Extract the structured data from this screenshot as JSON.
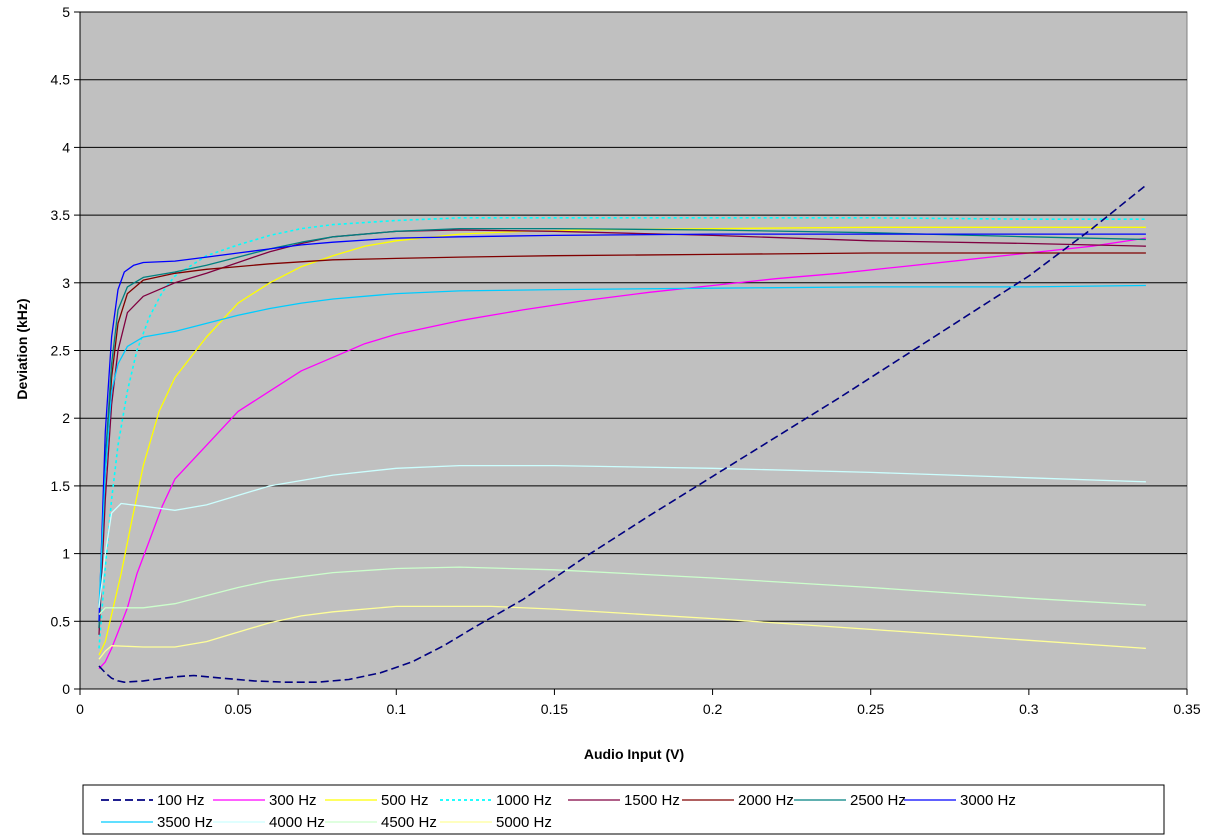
{
  "chart_data": {
    "type": "line",
    "title": "",
    "xlabel": "Audio Input (V)",
    "ylabel": "Deviation (kHz)",
    "xlim": [
      0,
      0.35
    ],
    "ylim": [
      0,
      5
    ],
    "x_ticks": [
      "0",
      "0.05",
      "0.1",
      "0.15",
      "0.2",
      "0.25",
      "0.3",
      "0.35"
    ],
    "y_ticks": [
      "0",
      "0.5",
      "1",
      "1.5",
      "2",
      "2.5",
      "3",
      "3.5",
      "4",
      "4.5",
      "5"
    ],
    "grid": "horizontal",
    "plot_background": "#c0c0c0",
    "legend_position": "bottom",
    "series": [
      {
        "name": "100 Hz",
        "color": "#000080",
        "dash": "dashed",
        "points": [
          [
            0.006,
            0.17
          ],
          [
            0.008,
            0.12
          ],
          [
            0.01,
            0.08
          ],
          [
            0.012,
            0.06
          ],
          [
            0.014,
            0.05
          ],
          [
            0.02,
            0.06
          ],
          [
            0.03,
            0.09
          ],
          [
            0.036,
            0.1
          ],
          [
            0.045,
            0.08
          ],
          [
            0.055,
            0.06
          ],
          [
            0.065,
            0.05
          ],
          [
            0.075,
            0.05
          ],
          [
            0.085,
            0.07
          ],
          [
            0.095,
            0.12
          ],
          [
            0.105,
            0.2
          ],
          [
            0.115,
            0.32
          ],
          [
            0.125,
            0.46
          ],
          [
            0.14,
            0.66
          ],
          [
            0.16,
            0.98
          ],
          [
            0.18,
            1.28
          ],
          [
            0.2,
            1.57
          ],
          [
            0.22,
            1.86
          ],
          [
            0.24,
            2.15
          ],
          [
            0.26,
            2.45
          ],
          [
            0.28,
            2.75
          ],
          [
            0.3,
            3.05
          ],
          [
            0.32,
            3.4
          ],
          [
            0.337,
            3.72
          ]
        ]
      },
      {
        "name": "300 Hz",
        "color": "#ff00ff",
        "dash": "solid",
        "points": [
          [
            0.006,
            0.15
          ],
          [
            0.008,
            0.2
          ],
          [
            0.01,
            0.3
          ],
          [
            0.012,
            0.42
          ],
          [
            0.015,
            0.6
          ],
          [
            0.018,
            0.85
          ],
          [
            0.022,
            1.1
          ],
          [
            0.026,
            1.35
          ],
          [
            0.03,
            1.55
          ],
          [
            0.04,
            1.8
          ],
          [
            0.05,
            2.05
          ],
          [
            0.06,
            2.2
          ],
          [
            0.07,
            2.35
          ],
          [
            0.08,
            2.45
          ],
          [
            0.09,
            2.55
          ],
          [
            0.1,
            2.62
          ],
          [
            0.12,
            2.72
          ],
          [
            0.14,
            2.8
          ],
          [
            0.16,
            2.87
          ],
          [
            0.18,
            2.93
          ],
          [
            0.2,
            2.98
          ],
          [
            0.22,
            3.03
          ],
          [
            0.24,
            3.07
          ],
          [
            0.26,
            3.12
          ],
          [
            0.28,
            3.17
          ],
          [
            0.3,
            3.22
          ],
          [
            0.32,
            3.27
          ],
          [
            0.337,
            3.33
          ]
        ]
      },
      {
        "name": "500 Hz",
        "color": "#ffff00",
        "dash": "solid",
        "points": [
          [
            0.006,
            0.25
          ],
          [
            0.008,
            0.35
          ],
          [
            0.01,
            0.55
          ],
          [
            0.013,
            0.85
          ],
          [
            0.016,
            1.2
          ],
          [
            0.02,
            1.65
          ],
          [
            0.025,
            2.05
          ],
          [
            0.03,
            2.3
          ],
          [
            0.04,
            2.6
          ],
          [
            0.05,
            2.85
          ],
          [
            0.06,
            3.0
          ],
          [
            0.07,
            3.12
          ],
          [
            0.08,
            3.2
          ],
          [
            0.09,
            3.27
          ],
          [
            0.1,
            3.31
          ],
          [
            0.12,
            3.36
          ],
          [
            0.14,
            3.38
          ],
          [
            0.16,
            3.39
          ],
          [
            0.2,
            3.4
          ],
          [
            0.25,
            3.41
          ],
          [
            0.3,
            3.41
          ],
          [
            0.337,
            3.41
          ]
        ]
      },
      {
        "name": "1000 Hz",
        "color": "#00ffff",
        "dash": "dotted",
        "points": [
          [
            0.006,
            0.3
          ],
          [
            0.008,
            0.9
          ],
          [
            0.01,
            1.4
          ],
          [
            0.012,
            1.8
          ],
          [
            0.015,
            2.2
          ],
          [
            0.018,
            2.5
          ],
          [
            0.022,
            2.75
          ],
          [
            0.026,
            2.93
          ],
          [
            0.03,
            3.05
          ],
          [
            0.04,
            3.2
          ],
          [
            0.05,
            3.28
          ],
          [
            0.06,
            3.35
          ],
          [
            0.07,
            3.4
          ],
          [
            0.08,
            3.43
          ],
          [
            0.1,
            3.46
          ],
          [
            0.12,
            3.48
          ],
          [
            0.15,
            3.48
          ],
          [
            0.2,
            3.48
          ],
          [
            0.25,
            3.48
          ],
          [
            0.3,
            3.47
          ],
          [
            0.337,
            3.47
          ]
        ]
      },
      {
        "name": "1500 Hz",
        "color": "#800040",
        "dash": "solid",
        "points": [
          [
            0.006,
            0.4
          ],
          [
            0.008,
            1.4
          ],
          [
            0.01,
            2.1
          ],
          [
            0.012,
            2.5
          ],
          [
            0.015,
            2.78
          ],
          [
            0.02,
            2.9
          ],
          [
            0.03,
            3.0
          ],
          [
            0.04,
            3.07
          ],
          [
            0.05,
            3.15
          ],
          [
            0.06,
            3.23
          ],
          [
            0.07,
            3.29
          ],
          [
            0.08,
            3.34
          ],
          [
            0.1,
            3.38
          ],
          [
            0.12,
            3.39
          ],
          [
            0.15,
            3.38
          ],
          [
            0.2,
            3.35
          ],
          [
            0.25,
            3.31
          ],
          [
            0.3,
            3.29
          ],
          [
            0.337,
            3.27
          ]
        ]
      },
      {
        "name": "2000 Hz",
        "color": "#800000",
        "dash": "solid",
        "points": [
          [
            0.006,
            0.45
          ],
          [
            0.008,
            1.6
          ],
          [
            0.01,
            2.3
          ],
          [
            0.012,
            2.7
          ],
          [
            0.015,
            2.92
          ],
          [
            0.02,
            3.02
          ],
          [
            0.03,
            3.07
          ],
          [
            0.04,
            3.1
          ],
          [
            0.05,
            3.12
          ],
          [
            0.06,
            3.14
          ],
          [
            0.08,
            3.17
          ],
          [
            0.1,
            3.18
          ],
          [
            0.12,
            3.19
          ],
          [
            0.15,
            3.2
          ],
          [
            0.2,
            3.21
          ],
          [
            0.25,
            3.22
          ],
          [
            0.3,
            3.22
          ],
          [
            0.337,
            3.22
          ]
        ]
      },
      {
        "name": "2500 Hz",
        "color": "#008080",
        "dash": "solid",
        "points": [
          [
            0.006,
            0.45
          ],
          [
            0.008,
            1.7
          ],
          [
            0.01,
            2.4
          ],
          [
            0.012,
            2.8
          ],
          [
            0.015,
            2.97
          ],
          [
            0.02,
            3.04
          ],
          [
            0.03,
            3.08
          ],
          [
            0.04,
            3.13
          ],
          [
            0.05,
            3.19
          ],
          [
            0.06,
            3.25
          ],
          [
            0.07,
            3.3
          ],
          [
            0.08,
            3.34
          ],
          [
            0.1,
            3.38
          ],
          [
            0.12,
            3.4
          ],
          [
            0.15,
            3.4
          ],
          [
            0.2,
            3.39
          ],
          [
            0.25,
            3.37
          ],
          [
            0.3,
            3.34
          ],
          [
            0.337,
            3.32
          ]
        ]
      },
      {
        "name": "3000 Hz",
        "color": "#0000ff",
        "dash": "solid",
        "points": [
          [
            0.006,
            0.5
          ],
          [
            0.008,
            1.9
          ],
          [
            0.01,
            2.6
          ],
          [
            0.012,
            2.95
          ],
          [
            0.014,
            3.08
          ],
          [
            0.017,
            3.13
          ],
          [
            0.02,
            3.15
          ],
          [
            0.03,
            3.16
          ],
          [
            0.04,
            3.19
          ],
          [
            0.05,
            3.22
          ],
          [
            0.06,
            3.25
          ],
          [
            0.07,
            3.28
          ],
          [
            0.08,
            3.3
          ],
          [
            0.1,
            3.33
          ],
          [
            0.12,
            3.34
          ],
          [
            0.15,
            3.35
          ],
          [
            0.2,
            3.36
          ],
          [
            0.25,
            3.36
          ],
          [
            0.3,
            3.36
          ],
          [
            0.337,
            3.36
          ]
        ]
      },
      {
        "name": "3500 Hz",
        "color": "#00ccff",
        "dash": "solid",
        "points": [
          [
            0.006,
            0.6
          ],
          [
            0.008,
            1.6
          ],
          [
            0.01,
            2.2
          ],
          [
            0.012,
            2.4
          ],
          [
            0.015,
            2.53
          ],
          [
            0.02,
            2.6
          ],
          [
            0.03,
            2.64
          ],
          [
            0.04,
            2.7
          ],
          [
            0.05,
            2.76
          ],
          [
            0.06,
            2.81
          ],
          [
            0.07,
            2.85
          ],
          [
            0.08,
            2.88
          ],
          [
            0.1,
            2.92
          ],
          [
            0.12,
            2.94
          ],
          [
            0.15,
            2.95
          ],
          [
            0.2,
            2.96
          ],
          [
            0.25,
            2.97
          ],
          [
            0.3,
            2.97
          ],
          [
            0.337,
            2.98
          ]
        ]
      },
      {
        "name": "4000 Hz",
        "color": "#ccffff",
        "dash": "solid",
        "points": [
          [
            0.006,
            0.6
          ],
          [
            0.008,
            1.0
          ],
          [
            0.01,
            1.3
          ],
          [
            0.013,
            1.37
          ],
          [
            0.02,
            1.35
          ],
          [
            0.03,
            1.32
          ],
          [
            0.04,
            1.36
          ],
          [
            0.05,
            1.43
          ],
          [
            0.06,
            1.5
          ],
          [
            0.08,
            1.58
          ],
          [
            0.1,
            1.63
          ],
          [
            0.12,
            1.65
          ],
          [
            0.15,
            1.65
          ],
          [
            0.2,
            1.63
          ],
          [
            0.25,
            1.6
          ],
          [
            0.3,
            1.56
          ],
          [
            0.337,
            1.53
          ]
        ]
      },
      {
        "name": "4500 Hz",
        "color": "#ccffcc",
        "dash": "solid",
        "points": [
          [
            0.006,
            0.55
          ],
          [
            0.008,
            0.6
          ],
          [
            0.012,
            0.6
          ],
          [
            0.02,
            0.6
          ],
          [
            0.03,
            0.63
          ],
          [
            0.04,
            0.69
          ],
          [
            0.05,
            0.75
          ],
          [
            0.06,
            0.8
          ],
          [
            0.08,
            0.86
          ],
          [
            0.1,
            0.89
          ],
          [
            0.12,
            0.9
          ],
          [
            0.15,
            0.88
          ],
          [
            0.2,
            0.82
          ],
          [
            0.25,
            0.75
          ],
          [
            0.3,
            0.67
          ],
          [
            0.337,
            0.62
          ]
        ]
      },
      {
        "name": "5000 Hz",
        "color": "#ffff99",
        "dash": "solid",
        "points": [
          [
            0.006,
            0.22
          ],
          [
            0.008,
            0.28
          ],
          [
            0.01,
            0.32
          ],
          [
            0.02,
            0.31
          ],
          [
            0.03,
            0.31
          ],
          [
            0.04,
            0.35
          ],
          [
            0.05,
            0.42
          ],
          [
            0.06,
            0.49
          ],
          [
            0.07,
            0.54
          ],
          [
            0.08,
            0.57
          ],
          [
            0.1,
            0.61
          ],
          [
            0.13,
            0.61
          ],
          [
            0.15,
            0.59
          ],
          [
            0.2,
            0.52
          ],
          [
            0.25,
            0.44
          ],
          [
            0.3,
            0.36
          ],
          [
            0.337,
            0.3
          ]
        ]
      }
    ]
  }
}
